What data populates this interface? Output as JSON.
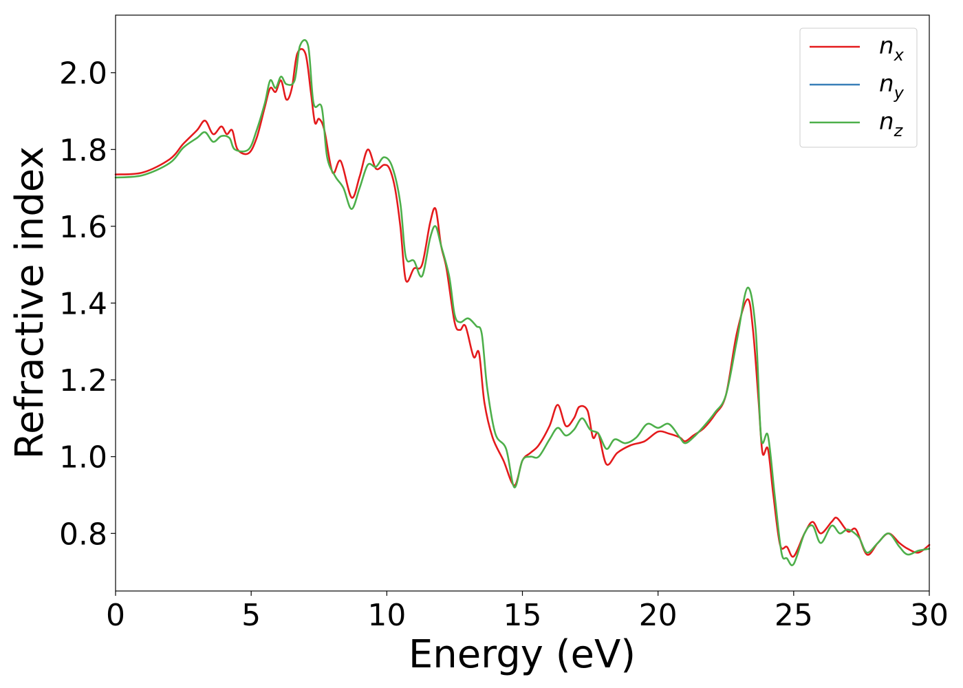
{
  "chart_data": {
    "type": "line",
    "xlabel": "Energy (eV)",
    "ylabel": "Refractive index",
    "xlim": [
      0,
      30
    ],
    "ylim": [
      0.65,
      2.15
    ],
    "xticks": [
      "0",
      "5",
      "10",
      "15",
      "20",
      "25",
      "30"
    ],
    "yticks": [
      "0.8",
      "1.0",
      "1.2",
      "1.4",
      "1.6",
      "1.8",
      "2.0"
    ],
    "grid": false,
    "legend_position": "top-right",
    "series": [
      {
        "name": "n",
        "subscript": "x",
        "color": "#e41a1c",
        "points": [
          [
            0,
            1.735
          ],
          [
            1,
            1.74
          ],
          [
            2,
            1.775
          ],
          [
            2.5,
            1.815
          ],
          [
            3,
            1.85
          ],
          [
            3.3,
            1.875
          ],
          [
            3.6,
            1.84
          ],
          [
            3.9,
            1.86
          ],
          [
            4.1,
            1.84
          ],
          [
            4.3,
            1.85
          ],
          [
            4.5,
            1.8
          ],
          [
            4.9,
            1.79
          ],
          [
            5.2,
            1.83
          ],
          [
            5.5,
            1.91
          ],
          [
            5.7,
            1.96
          ],
          [
            5.9,
            1.95
          ],
          [
            6.1,
            1.98
          ],
          [
            6.3,
            1.93
          ],
          [
            6.5,
            1.96
          ],
          [
            6.7,
            2.05
          ],
          [
            7.0,
            2.05
          ],
          [
            7.2,
            1.95
          ],
          [
            7.35,
            1.87
          ],
          [
            7.5,
            1.88
          ],
          [
            7.7,
            1.85
          ],
          [
            8.0,
            1.74
          ],
          [
            8.3,
            1.77
          ],
          [
            8.7,
            1.675
          ],
          [
            9.0,
            1.73
          ],
          [
            9.3,
            1.8
          ],
          [
            9.6,
            1.75
          ],
          [
            9.9,
            1.76
          ],
          [
            10.1,
            1.75
          ],
          [
            10.3,
            1.7
          ],
          [
            10.5,
            1.6
          ],
          [
            10.7,
            1.46
          ],
          [
            11.0,
            1.49
          ],
          [
            11.3,
            1.5
          ],
          [
            11.6,
            1.61
          ],
          [
            11.8,
            1.645
          ],
          [
            12.0,
            1.55
          ],
          [
            12.2,
            1.49
          ],
          [
            12.5,
            1.35
          ],
          [
            12.7,
            1.33
          ],
          [
            12.9,
            1.34
          ],
          [
            13.2,
            1.26
          ],
          [
            13.4,
            1.27
          ],
          [
            13.6,
            1.14
          ],
          [
            13.9,
            1.05
          ],
          [
            14.3,
            0.99
          ],
          [
            14.7,
            0.925
          ],
          [
            15.0,
            0.99
          ],
          [
            15.3,
            1.01
          ],
          [
            15.6,
            1.03
          ],
          [
            16.0,
            1.08
          ],
          [
            16.3,
            1.135
          ],
          [
            16.6,
            1.08
          ],
          [
            16.9,
            1.1
          ],
          [
            17.1,
            1.13
          ],
          [
            17.4,
            1.12
          ],
          [
            17.6,
            1.05
          ],
          [
            17.8,
            1.06
          ],
          [
            18.1,
            0.98
          ],
          [
            18.5,
            1.01
          ],
          [
            19.0,
            1.03
          ],
          [
            19.5,
            1.04
          ],
          [
            20.0,
            1.065
          ],
          [
            20.4,
            1.06
          ],
          [
            20.8,
            1.05
          ],
          [
            21.0,
            1.04
          ],
          [
            21.3,
            1.055
          ],
          [
            21.7,
            1.075
          ],
          [
            22.1,
            1.11
          ],
          [
            22.5,
            1.16
          ],
          [
            22.9,
            1.32
          ],
          [
            23.3,
            1.41
          ],
          [
            23.5,
            1.33
          ],
          [
            23.7,
            1.15
          ],
          [
            23.85,
            1.01
          ],
          [
            24.05,
            1.02
          ],
          [
            24.25,
            0.9
          ],
          [
            24.5,
            0.77
          ],
          [
            24.75,
            0.765
          ],
          [
            25.0,
            0.74
          ],
          [
            25.4,
            0.8
          ],
          [
            25.7,
            0.83
          ],
          [
            26.0,
            0.8
          ],
          [
            26.4,
            0.83
          ],
          [
            26.6,
            0.84
          ],
          [
            27.0,
            0.805
          ],
          [
            27.3,
            0.81
          ],
          [
            27.7,
            0.745
          ],
          [
            28.1,
            0.775
          ],
          [
            28.5,
            0.8
          ],
          [
            28.9,
            0.775
          ],
          [
            29.2,
            0.76
          ],
          [
            29.6,
            0.75
          ],
          [
            30,
            0.77
          ]
        ]
      },
      {
        "name": "n",
        "subscript": "y",
        "color": "#377eb8",
        "points": []
      },
      {
        "name": "n",
        "subscript": "z",
        "color": "#4daf4a",
        "points": [
          [
            0,
            1.727
          ],
          [
            1,
            1.733
          ],
          [
            2,
            1.765
          ],
          [
            2.5,
            1.805
          ],
          [
            3,
            1.83
          ],
          [
            3.3,
            1.845
          ],
          [
            3.6,
            1.82
          ],
          [
            3.9,
            1.835
          ],
          [
            4.2,
            1.83
          ],
          [
            4.4,
            1.8
          ],
          [
            4.9,
            1.8
          ],
          [
            5.2,
            1.85
          ],
          [
            5.5,
            1.92
          ],
          [
            5.7,
            1.98
          ],
          [
            5.9,
            1.96
          ],
          [
            6.1,
            1.99
          ],
          [
            6.3,
            1.97
          ],
          [
            6.6,
            1.98
          ],
          [
            6.8,
            2.07
          ],
          [
            7.1,
            2.07
          ],
          [
            7.3,
            1.92
          ],
          [
            7.6,
            1.91
          ],
          [
            7.8,
            1.78
          ],
          [
            8.1,
            1.73
          ],
          [
            8.4,
            1.7
          ],
          [
            8.7,
            1.645
          ],
          [
            9.0,
            1.7
          ],
          [
            9.3,
            1.76
          ],
          [
            9.6,
            1.755
          ],
          [
            9.9,
            1.78
          ],
          [
            10.2,
            1.755
          ],
          [
            10.5,
            1.66
          ],
          [
            10.7,
            1.52
          ],
          [
            11.0,
            1.51
          ],
          [
            11.3,
            1.47
          ],
          [
            11.6,
            1.57
          ],
          [
            11.8,
            1.6
          ],
          [
            12.0,
            1.55
          ],
          [
            12.3,
            1.47
          ],
          [
            12.5,
            1.37
          ],
          [
            12.7,
            1.35
          ],
          [
            13.0,
            1.36
          ],
          [
            13.3,
            1.34
          ],
          [
            13.5,
            1.32
          ],
          [
            13.7,
            1.18
          ],
          [
            14.0,
            1.06
          ],
          [
            14.4,
            1.02
          ],
          [
            14.7,
            0.92
          ],
          [
            15.0,
            0.99
          ],
          [
            15.3,
            1.0
          ],
          [
            15.6,
            1.0
          ],
          [
            16.0,
            1.045
          ],
          [
            16.3,
            1.075
          ],
          [
            16.6,
            1.055
          ],
          [
            16.9,
            1.07
          ],
          [
            17.2,
            1.1
          ],
          [
            17.5,
            1.07
          ],
          [
            17.8,
            1.06
          ],
          [
            18.1,
            1.02
          ],
          [
            18.4,
            1.045
          ],
          [
            18.8,
            1.035
          ],
          [
            19.2,
            1.05
          ],
          [
            19.6,
            1.085
          ],
          [
            20.0,
            1.075
          ],
          [
            20.4,
            1.085
          ],
          [
            20.8,
            1.05
          ],
          [
            21.0,
            1.035
          ],
          [
            21.3,
            1.05
          ],
          [
            21.7,
            1.08
          ],
          [
            22.1,
            1.115
          ],
          [
            22.5,
            1.16
          ],
          [
            22.9,
            1.3
          ],
          [
            23.3,
            1.44
          ],
          [
            23.6,
            1.33
          ],
          [
            23.8,
            1.05
          ],
          [
            24.05,
            1.055
          ],
          [
            24.3,
            0.9
          ],
          [
            24.55,
            0.75
          ],
          [
            24.75,
            0.735
          ],
          [
            25.0,
            0.72
          ],
          [
            25.4,
            0.8
          ],
          [
            25.7,
            0.82
          ],
          [
            26.0,
            0.775
          ],
          [
            26.4,
            0.82
          ],
          [
            26.7,
            0.8
          ],
          [
            27.0,
            0.81
          ],
          [
            27.4,
            0.79
          ],
          [
            27.7,
            0.75
          ],
          [
            28.1,
            0.775
          ],
          [
            28.5,
            0.8
          ],
          [
            28.9,
            0.765
          ],
          [
            29.2,
            0.745
          ],
          [
            29.6,
            0.755
          ],
          [
            30,
            0.76
          ]
        ]
      }
    ]
  }
}
